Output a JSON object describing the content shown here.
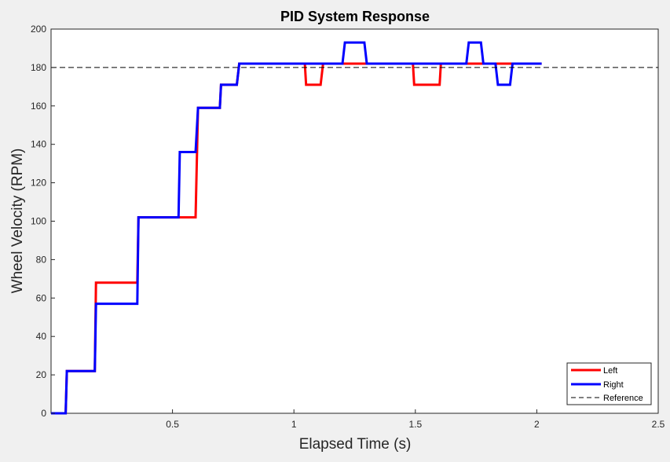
{
  "chart_data": {
    "type": "line",
    "title": "PID System Response",
    "xlabel": "Elapsed Time (s)",
    "ylabel": "Wheel Velocity (RPM)",
    "xlim": [
      0,
      2.5
    ],
    "ylim": [
      0,
      200
    ],
    "xticks": [
      0.5,
      1,
      1.5,
      2,
      2.5
    ],
    "xtick_labels": [
      "0.5",
      "1",
      "1.5",
      "2",
      "2.5"
    ],
    "yticks": [
      0,
      20,
      40,
      60,
      80,
      100,
      120,
      140,
      160,
      180,
      200
    ],
    "ytick_labels": [
      "0",
      "20",
      "40",
      "60",
      "80",
      "100",
      "120",
      "140",
      "160",
      "180",
      "200"
    ],
    "grid": false,
    "legend_position": "bottom-right",
    "reference": {
      "name": "Reference",
      "y": 180,
      "color": "#000000",
      "style": "dashed"
    },
    "series": [
      {
        "name": "Left",
        "color": "#ff0000",
        "x": [
          0.0,
          0.06,
          0.065,
          0.18,
          0.185,
          0.355,
          0.36,
          0.595,
          0.605,
          0.695,
          0.7,
          0.765,
          0.775,
          1.045,
          1.05,
          1.11,
          1.12,
          1.49,
          1.495,
          1.6,
          1.605,
          2.02
        ],
        "y": [
          0,
          0,
          22,
          22,
          68,
          68,
          102,
          102,
          159,
          159,
          171,
          171,
          182,
          182,
          171,
          171,
          182,
          182,
          171,
          171,
          182,
          182
        ]
      },
      {
        "name": "Right",
        "color": "#0000ff",
        "x": [
          0.0,
          0.06,
          0.065,
          0.18,
          0.185,
          0.355,
          0.36,
          0.525,
          0.53,
          0.595,
          0.605,
          0.695,
          0.7,
          0.765,
          0.775,
          1.2,
          1.21,
          1.29,
          1.3,
          1.71,
          1.72,
          1.77,
          1.78,
          1.83,
          1.84,
          1.89,
          1.9,
          2.02
        ],
        "y": [
          0,
          0,
          22,
          22,
          57,
          57,
          102,
          102,
          136,
          136,
          159,
          159,
          171,
          171,
          182,
          182,
          193,
          193,
          182,
          182,
          193,
          193,
          182,
          182,
          171,
          171,
          182,
          182
        ]
      }
    ]
  }
}
